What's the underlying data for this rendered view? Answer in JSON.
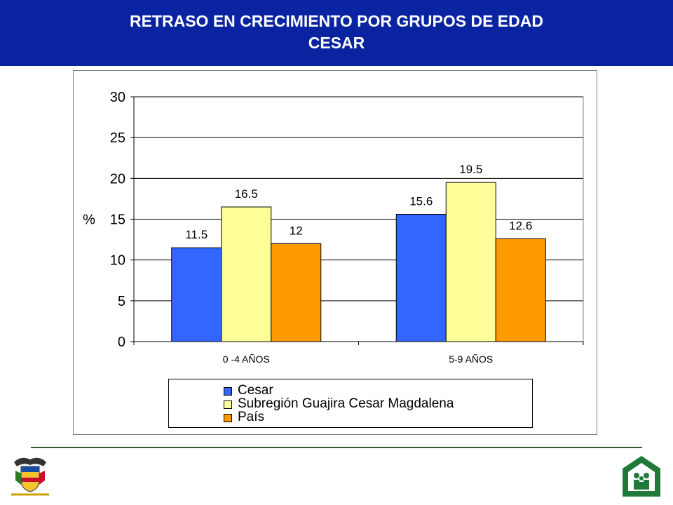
{
  "title": {
    "line1": "RETRASO EN CRECIMIENTO POR GRUPOS  DE EDAD",
    "line2": "CESAR"
  },
  "chart_data": {
    "type": "bar",
    "categories": [
      "0 -4 AÑOS",
      "5-9 AÑOS"
    ],
    "series": [
      {
        "name": "Cesar",
        "values": [
          11.5,
          15.6
        ],
        "labels": [
          "11.5",
          "15.6"
        ],
        "color": "#3366ff"
      },
      {
        "name": "Subregión Guajira Cesar Magdalena",
        "values": [
          16.5,
          19.5
        ],
        "labels": [
          "16.5",
          "19.5"
        ],
        "color": "#ffff99"
      },
      {
        "name": "País",
        "values": [
          12,
          12.6
        ],
        "labels": [
          "12",
          "12.6"
        ],
        "color": "#ff9900"
      }
    ],
    "ylabel": "%",
    "ylim": [
      0,
      30
    ],
    "yticks": [
      "0",
      "5",
      "10",
      "15",
      "20",
      "25",
      "30"
    ],
    "grid": true,
    "legend_position": "bottom"
  },
  "footer": {
    "left_logo": "colombia-coat-of-arms",
    "left_logo_text": "Libertad y Orden",
    "right_logo": "ministry-logo"
  }
}
